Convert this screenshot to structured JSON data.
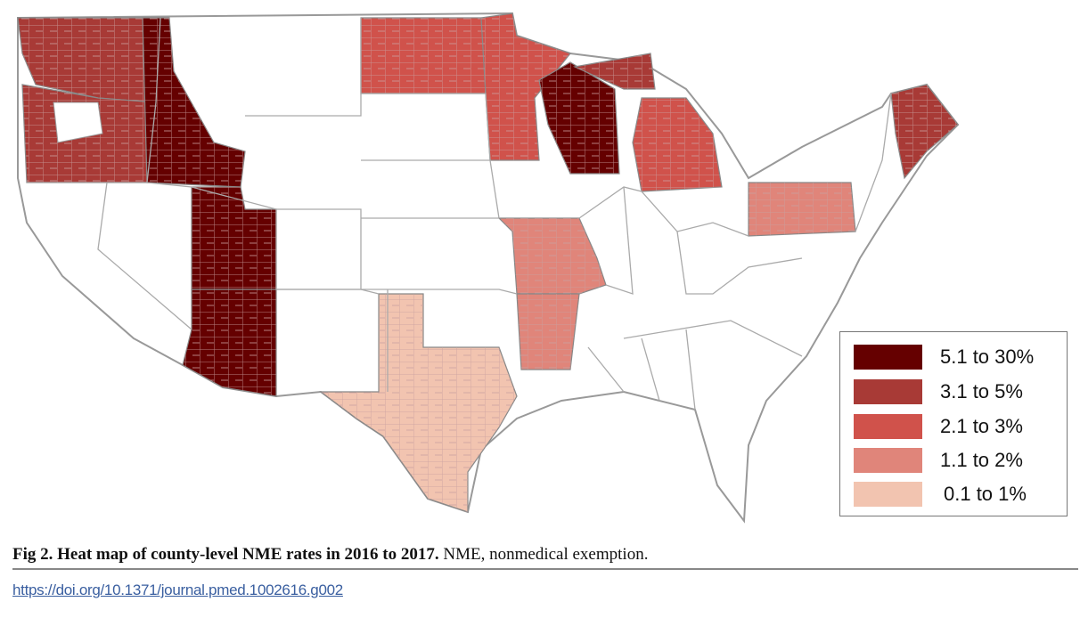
{
  "legend": {
    "items": [
      {
        "label": "5.1 to 30%",
        "color": "#650000"
      },
      {
        "label": "3.1 to 5%",
        "color": "#a83a36"
      },
      {
        "label": "2.1 to 3%",
        "color": "#d0524b"
      },
      {
        "label": "1.1 to 2%",
        "color": "#e0857a"
      },
      {
        "label": "0.1 to 1%",
        "color": "#f2c4b0"
      }
    ],
    "no_data_color": "#ffffff"
  },
  "caption": {
    "bold": "Fig 2. Heat map of county-level NME rates in 2016 to 2017.",
    "rest": " NME, nonmedical exemption."
  },
  "doi": "https://doi.org/10.1371/journal.pmed.1002616.g002"
}
